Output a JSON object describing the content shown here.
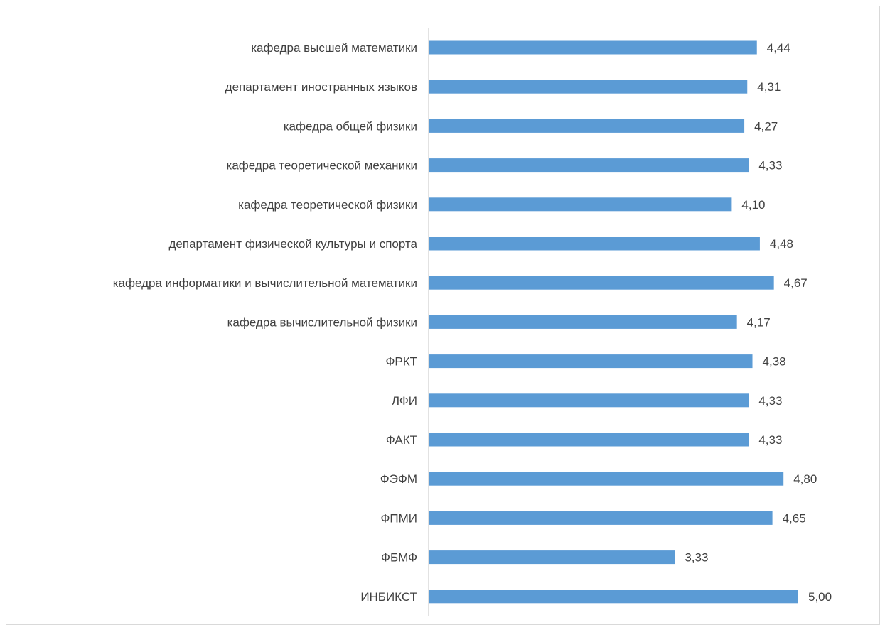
{
  "chart_data": {
    "type": "bar",
    "orientation": "horizontal",
    "categories": [
      "кафедра высшей математики",
      "департамент иностранных языков",
      "кафедра общей физики",
      "кафедра теоретической механики",
      "кафедра теоретической физики",
      "департамент физической культуры и спорта",
      "кафедра информатики и вычислительной математики",
      "кафедра вычислительной физики",
      "ФРКТ",
      "ЛФИ",
      "ФАКТ",
      "ФЭФМ",
      "ФПМИ",
      "ФБМФ",
      "ИНБИКСТ"
    ],
    "values": [
      4.44,
      4.31,
      4.27,
      4.33,
      4.1,
      4.48,
      4.67,
      4.17,
      4.38,
      4.33,
      4.33,
      4.8,
      4.65,
      3.33,
      5.0
    ],
    "value_labels": [
      "4,44",
      "4,31",
      "4,27",
      "4,33",
      "4,10",
      "4,48",
      "4,67",
      "4,17",
      "4,38",
      "4,33",
      "4,33",
      "4,80",
      "4,65",
      "3,33",
      "5,00"
    ],
    "xlim": [
      0,
      5
    ],
    "grid": false,
    "legend": "none",
    "title": "",
    "xlabel": "",
    "ylabel": "",
    "bar_color": "#5b9bd5",
    "axis_color": "#d9d9d9",
    "label_color": "#404040"
  }
}
